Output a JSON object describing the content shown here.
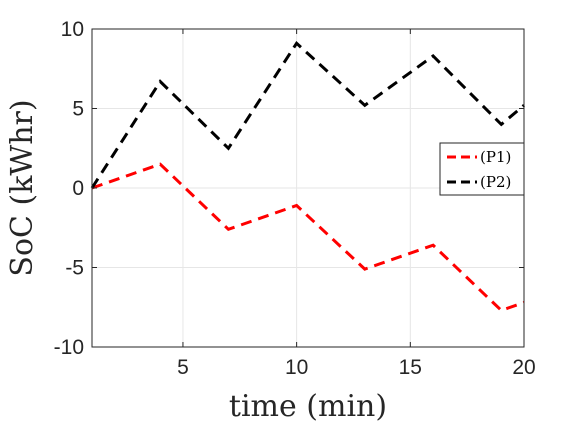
{
  "chart_data": {
    "type": "line",
    "xlabel": "time (min)",
    "ylabel": "SoC (kWhr)",
    "xlim": [
      1,
      20
    ],
    "ylim": [
      -10,
      10
    ],
    "xticks": [
      5,
      10,
      15,
      20
    ],
    "yticks": [
      -10,
      -5,
      0,
      5,
      10
    ],
    "grid": true,
    "legend_position": "right",
    "series": [
      {
        "name": "(P1)",
        "color": "#ff0000",
        "line_style": "dashed",
        "x": [
          1,
          4,
          7,
          10,
          13,
          16,
          19,
          20
        ],
        "y": [
          0,
          1.5,
          -2.6,
          -1.1,
          -5.1,
          -3.6,
          -7.7,
          -7.2
        ]
      },
      {
        "name": "(P2)",
        "color": "#000000",
        "line_style": "dashed",
        "x": [
          1,
          4,
          7,
          10,
          13,
          16,
          19,
          20
        ],
        "y": [
          0,
          6.7,
          2.5,
          9.1,
          5.2,
          8.3,
          4.0,
          5.2
        ]
      }
    ]
  }
}
